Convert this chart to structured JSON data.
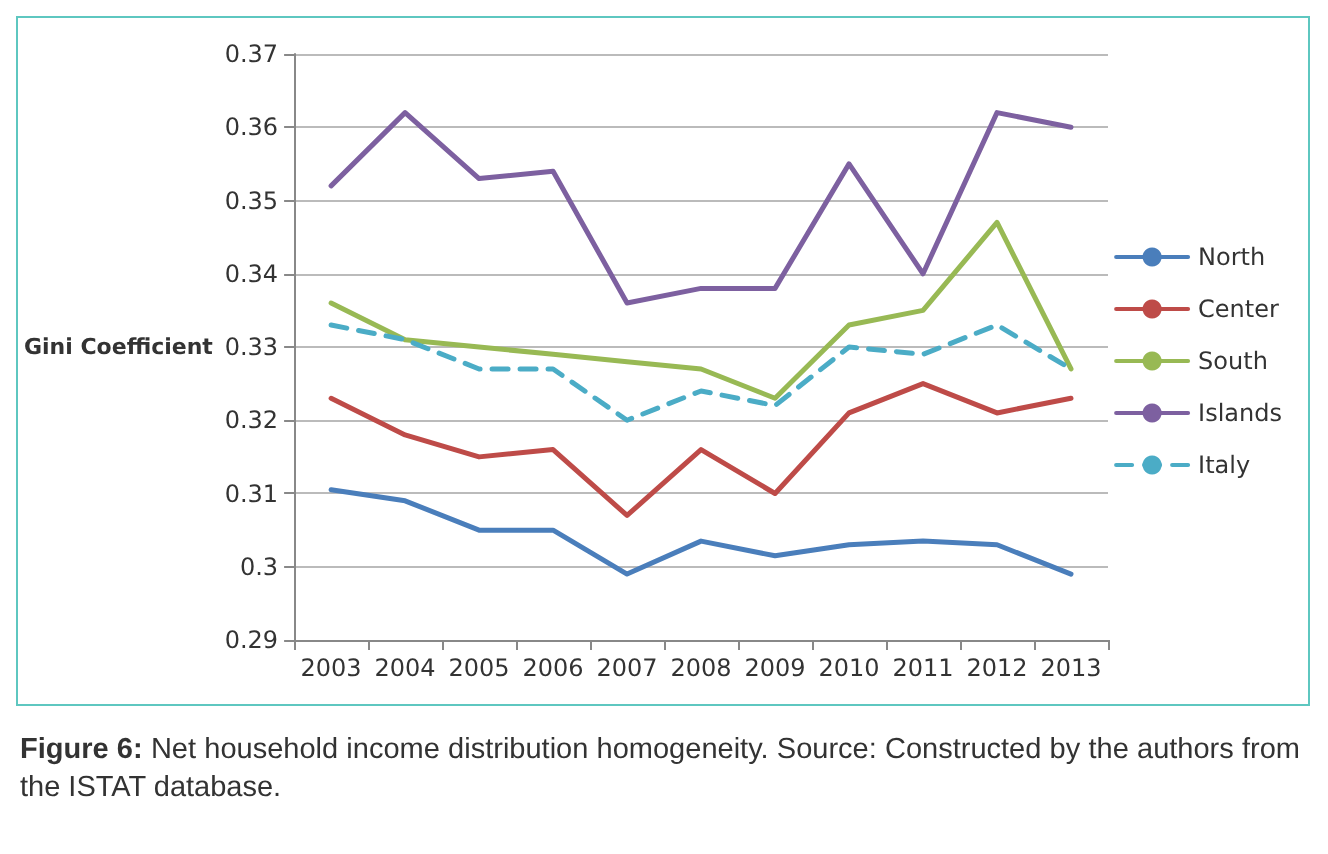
{
  "chart_data": {
    "type": "line",
    "ylabel": "Gini Coefficient",
    "categories": [
      "2003",
      "2004",
      "2005",
      "2006",
      "2007",
      "2008",
      "2009",
      "2010",
      "2011",
      "2012",
      "2013"
    ],
    "series": [
      {
        "name": "North",
        "color": "#4a7ebb",
        "values": [
          0.3105,
          0.309,
          0.305,
          0.305,
          0.299,
          0.3035,
          0.3015,
          0.303,
          0.3035,
          0.303,
          0.299
        ]
      },
      {
        "name": "Center",
        "color": "#be4b48",
        "values": [
          0.323,
          0.318,
          0.315,
          0.316,
          0.307,
          0.316,
          0.31,
          0.321,
          0.325,
          0.321,
          0.323
        ]
      },
      {
        "name": "South",
        "color": "#98b954",
        "values": [
          0.336,
          0.331,
          0.33,
          0.329,
          0.328,
          0.327,
          0.323,
          0.333,
          0.335,
          0.347,
          0.327
        ]
      },
      {
        "name": "Islands",
        "color": "#7d60a0",
        "values": [
          0.352,
          0.362,
          0.353,
          0.354,
          0.336,
          0.338,
          0.338,
          0.355,
          0.34,
          0.362,
          0.36
        ]
      },
      {
        "name": "Italy",
        "color": "#4bacc6",
        "line_style": "dashed",
        "values": [
          0.333,
          0.331,
          0.327,
          0.327,
          0.32,
          0.324,
          0.322,
          0.33,
          0.329,
          0.333,
          0.327
        ]
      }
    ],
    "ylim": [
      0.29,
      0.37
    ],
    "yticks": [
      0.29,
      0.3,
      0.31,
      0.32,
      0.33,
      0.34,
      0.35,
      0.36,
      0.37
    ],
    "grid": "y",
    "legend": "right",
    "marker": "none",
    "line_style": "solid",
    "annotations": [
      "Figure 6: Net household income distribution homogeneity. Source: Constructed by the authors from the ISTAT database."
    ]
  }
}
